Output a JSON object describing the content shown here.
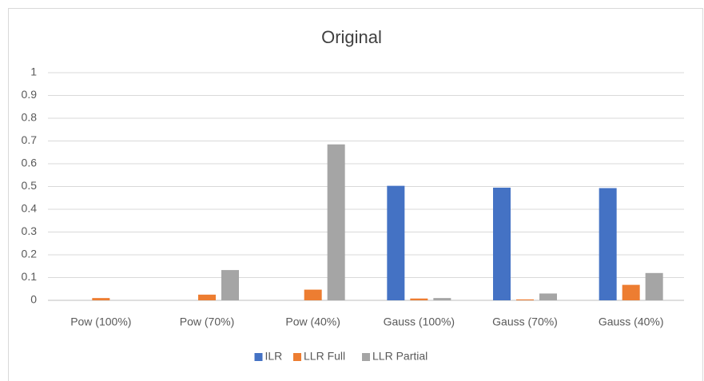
{
  "chart_data": {
    "type": "bar",
    "title": "Original",
    "categories": [
      "Pow (100%)",
      "Pow (70%)",
      "Pow (40%)",
      "Gauss (100%)",
      "Gauss (70%)",
      "Gauss (40%)"
    ],
    "series": [
      {
        "name": "ILR",
        "color": "#4472c4",
        "values": [
          0,
          0,
          0,
          0.503,
          0.495,
          0.493
        ]
      },
      {
        "name": "LLR Full",
        "color": "#ed7d31",
        "values": [
          0.01,
          0.025,
          0.047,
          0.008,
          0.004,
          0.068
        ]
      },
      {
        "name": "LLR Partial",
        "color": "#a5a5a5",
        "values": [
          0,
          0.133,
          0.685,
          0.01,
          0.03,
          0.12
        ]
      }
    ],
    "ylim": [
      0,
      1
    ],
    "yticks": [
      0,
      0.1,
      0.2,
      0.3,
      0.4,
      0.5,
      0.6,
      0.7,
      0.8,
      0.9,
      1
    ],
    "grid": true,
    "legend": "bottom"
  }
}
